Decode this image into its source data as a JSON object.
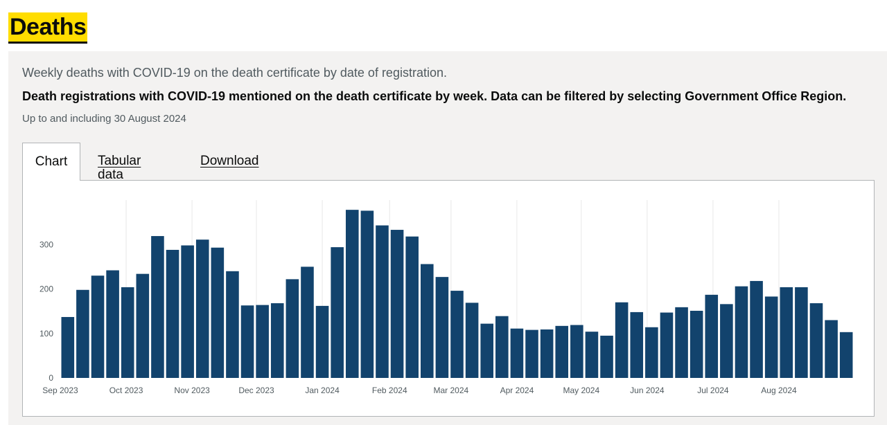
{
  "page": {
    "heading": "Deaths"
  },
  "card": {
    "subtitle": "Weekly deaths with COVID-19 on the death certificate by date of registration.",
    "description": "Death registrations with COVID-19 mentioned on the death certificate by week. Data can be filtered by selecting Government Office Region.",
    "updated": "Up to and including 30 August 2024"
  },
  "tabs": [
    {
      "label": "Chart",
      "active": true
    },
    {
      "label": "Tabular data",
      "active": false
    },
    {
      "label": "Download",
      "active": false
    }
  ],
  "colors": {
    "bar": "#12436d",
    "highlight": "#ffdd00",
    "panel": "#f3f2f1"
  },
  "chart_data": {
    "type": "bar",
    "title": "",
    "xlabel": "",
    "ylabel": "",
    "ylim": [
      0,
      400
    ],
    "yticks": [
      0,
      100,
      200,
      300
    ],
    "grid": "vertical at month starts",
    "x_tick_labels": [
      {
        "label": "Sep 2023",
        "index": 0
      },
      {
        "label": "Oct 2023",
        "index": 4.4
      },
      {
        "label": "Nov 2023",
        "index": 8.8
      },
      {
        "label": "Dec 2023",
        "index": 13.1
      },
      {
        "label": "Jan 2024",
        "index": 17.5
      },
      {
        "label": "Feb 2024",
        "index": 22
      },
      {
        "label": "Mar 2024",
        "index": 26.1
      },
      {
        "label": "Apr 2024",
        "index": 30.5
      },
      {
        "label": "May 2024",
        "index": 34.8
      },
      {
        "label": "Jun 2024",
        "index": 39.2
      },
      {
        "label": "Jul 2024",
        "index": 43.6
      },
      {
        "label": "Aug 2024",
        "index": 48
      }
    ],
    "series": [
      {
        "values": [
          137,
          198,
          230,
          242,
          204,
          234,
          319,
          288,
          298,
          311,
          293,
          240,
          163,
          164,
          168,
          222,
          250,
          162,
          294,
          378,
          376,
          343,
          333,
          318,
          256,
          227,
          196,
          169,
          122,
          139,
          111,
          108,
          109,
          117,
          119,
          104,
          95,
          170,
          148,
          114,
          147,
          159,
          151,
          187,
          166,
          206,
          218,
          183,
          204,
          204,
          168,
          130,
          103
        ]
      }
    ]
  }
}
